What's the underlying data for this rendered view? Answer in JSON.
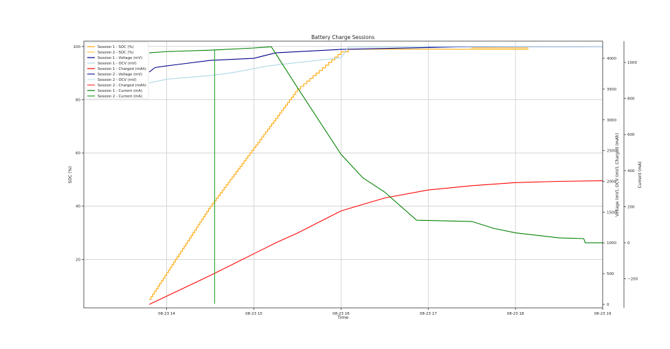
{
  "chart_data": {
    "type": "line",
    "title": "Battery Charge Sessions",
    "xlabel": "Time",
    "x_ticks": [
      "08-23 14",
      "08-23 15",
      "08-23 16",
      "08-23 17",
      "08-23 18",
      "08-23 19"
    ],
    "x_tick_hours": [
      14,
      15,
      16,
      17,
      18,
      19
    ],
    "xlim": [
      "13:03",
      "19:00"
    ],
    "grid": true,
    "legend_position": "top-left",
    "axes": {
      "soc": {
        "label": "SOC (%)",
        "side": "left",
        "ylim": [
          1.8,
          102
        ],
        "ticks": [
          20,
          40,
          60,
          80,
          100
        ]
      },
      "mv": {
        "label": "Voltage (mV), OCV (mV), Charged (mAh)",
        "side": "right",
        "ylim": [
          -56,
          4279
        ],
        "ticks": [
          0,
          500,
          1000,
          1500,
          2000,
          2500,
          3000,
          3500,
          4000
        ]
      },
      "ma": {
        "label": "Current (mA)",
        "side": "right-outer",
        "ylim": [
          -361,
          1118
        ],
        "ticks": [
          -200,
          0,
          200,
          400,
          600,
          800,
          1000
        ],
        "tick_labels": [
          "−200",
          "0",
          "200",
          "400",
          "600",
          "800",
          "1000"
        ]
      }
    },
    "series": [
      {
        "name": "Session 1 - SOC (%)",
        "axis": "soc",
        "color": "#FFA500",
        "step": true,
        "points": [
          [
            "13:48",
            5
          ],
          [
            "14:30",
            40
          ],
          [
            "15:00",
            62
          ],
          [
            "15:30",
            84
          ],
          [
            "16:00",
            98
          ],
          [
            "16:05",
            99
          ],
          [
            "18:09",
            99
          ]
        ]
      },
      {
        "name": "Session 2 - SOC (%)",
        "axis": "soc",
        "color": "#FFC040",
        "step": true,
        "points": [
          [
            "16:05",
            99
          ],
          [
            "17:30",
            99.5
          ],
          [
            "18:09",
            99.5
          ]
        ]
      },
      {
        "name": "Session 1 - Voltage (mV)",
        "axis": "mv",
        "color": "#00008B",
        "points": [
          [
            "13:48",
            3777
          ],
          [
            "13:52",
            3850
          ],
          [
            "14:00",
            3877
          ],
          [
            "14:30",
            3966
          ],
          [
            "15:00",
            4000
          ],
          [
            "15:15",
            4089
          ],
          [
            "16:00",
            4145
          ],
          [
            "16:30",
            4160
          ],
          [
            "17:30",
            4190
          ],
          [
            "19:00",
            4195
          ]
        ]
      },
      {
        "name": "Session 1 - OCV (mV)",
        "axis": "mv",
        "color": "#ADD8E6",
        "points": [
          [
            "13:48",
            3600
          ],
          [
            "14:00",
            3660
          ],
          [
            "14:30",
            3720
          ],
          [
            "14:45",
            3766
          ],
          [
            "15:10",
            3877
          ],
          [
            "16:00",
            4010
          ],
          [
            "16:05",
            4180
          ],
          [
            "17:00",
            4190
          ],
          [
            "19:00",
            4195
          ]
        ]
      },
      {
        "name": "Session 1 - Charged (mAh)",
        "axis": "mv",
        "color": "#FF0000",
        "points": [
          [
            "13:48",
            0
          ],
          [
            "14:30",
            470
          ],
          [
            "15:15",
            1000
          ],
          [
            "15:30",
            1160
          ],
          [
            "16:00",
            1520
          ],
          [
            "16:30",
            1730
          ],
          [
            "17:00",
            1860
          ],
          [
            "17:30",
            1930
          ],
          [
            "18:00",
            1980
          ],
          [
            "18:30",
            2000
          ],
          [
            "19:00",
            2010
          ]
        ]
      },
      {
        "name": "Session 2 - Voltage (mV)",
        "axis": "mv",
        "color": "#1a1aa0",
        "points": [
          [
            "17:00",
            4185
          ],
          [
            "19:00",
            4195
          ]
        ]
      },
      {
        "name": "Session 2 - OCV (mV)",
        "axis": "mv",
        "color": "#C6E6F0",
        "points": [
          [
            "17:00",
            4190
          ],
          [
            "19:00",
            4196
          ]
        ]
      },
      {
        "name": "Session 2 - Charged (mAh)",
        "axis": "mv",
        "color": "#FF3030",
        "points": []
      },
      {
        "name": "Session 1 - Current (mA)",
        "axis": "ma",
        "color": "#008000",
        "points": [
          [
            "13:48",
            1053
          ],
          [
            "14:00",
            1060
          ],
          [
            "14:30",
            1068
          ],
          [
            "15:00",
            1080
          ],
          [
            "15:12",
            1087
          ],
          [
            "15:30",
            860
          ],
          [
            "16:00",
            490
          ],
          [
            "16:15",
            360
          ],
          [
            "16:30",
            281
          ],
          [
            "16:52",
            125
          ],
          [
            "17:30",
            118
          ],
          [
            "17:45",
            80
          ],
          [
            "18:00",
            55
          ],
          [
            "18:30",
            27
          ],
          [
            "18:47",
            23
          ],
          [
            "18:48",
            0
          ],
          [
            "19:00",
            0
          ]
        ]
      },
      {
        "name": "Session 2 - Current (mA)",
        "axis": "ma",
        "color": "#22a022",
        "points": [
          [
            "14:33",
            -338
          ],
          [
            "14:33",
            1072
          ]
        ]
      }
    ]
  }
}
